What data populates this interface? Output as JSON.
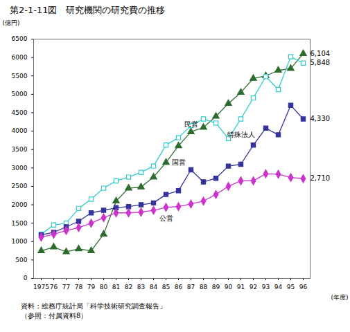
{
  "chart_data": {
    "type": "line",
    "title": "第2-1-11図　研究機関の研究費の推移",
    "source": "資料：総務庁統計局「科学技術研究調査報告」",
    "note": "（参照：付属資料8）",
    "x_label": "(年度)",
    "y_label": "(億円)",
    "categories": [
      "1975",
      "76",
      "77",
      "78",
      "79",
      "80",
      "81",
      "82",
      "83",
      "84",
      "85",
      "86",
      "87",
      "88",
      "89",
      "90",
      "91",
      "92",
      "93",
      "94",
      "95",
      "96"
    ],
    "ylim": [
      0,
      6500
    ],
    "yticks": [
      0,
      500,
      1000,
      1500,
      2000,
      2500,
      3000,
      3500,
      4000,
      4500,
      5000,
      5500,
      6000,
      6500
    ],
    "grid": false,
    "data_labels": true,
    "series": [
      {
        "name": "民営",
        "color": "#2e6b2e",
        "marker": "triangle",
        "values": [
          750,
          850,
          720,
          800,
          750,
          1200,
          2100,
          2450,
          2480,
          2750,
          3150,
          3600,
          3980,
          4100,
          4400,
          4750,
          5050,
          5430,
          5500,
          5650,
          5700,
          6104
        ],
        "value_labels": [
          null,
          null,
          null,
          null,
          null,
          null,
          null,
          null,
          null,
          null,
          null,
          null,
          null,
          null,
          null,
          null,
          null,
          null,
          null,
          null,
          null,
          "6,104"
        ]
      },
      {
        "name": "特殊法人",
        "color": "#33cccc",
        "marker": "open-square",
        "values": [
          1200,
          1450,
          1500,
          1900,
          2150,
          2450,
          2650,
          2750,
          2880,
          3050,
          3620,
          3820,
          4150,
          4330,
          4220,
          3800,
          4330,
          4900,
          5480,
          5130,
          6020,
          5848
        ],
        "value_labels": [
          null,
          null,
          null,
          null,
          null,
          null,
          null,
          null,
          null,
          null,
          null,
          null,
          null,
          null,
          null,
          null,
          null,
          null,
          null,
          null,
          null,
          "5,848"
        ]
      },
      {
        "name": "国営",
        "color": "#333399",
        "marker": "square",
        "values": [
          1180,
          1250,
          1400,
          1550,
          1780,
          1850,
          1920,
          1950,
          2000,
          2050,
          2280,
          2380,
          2950,
          2620,
          2720,
          3050,
          3100,
          3620,
          4080,
          3900,
          4700,
          4330
        ],
        "value_labels": [
          null,
          null,
          null,
          null,
          null,
          null,
          null,
          null,
          null,
          null,
          null,
          null,
          null,
          null,
          null,
          null,
          null,
          null,
          null,
          null,
          null,
          "4,330"
        ]
      },
      {
        "name": "公営",
        "color": "#cc33cc",
        "marker": "diamond",
        "values": [
          1120,
          1200,
          1300,
          1380,
          1500,
          1650,
          1780,
          1780,
          1800,
          1850,
          1930,
          1950,
          2020,
          2100,
          2280,
          2500,
          2650,
          2650,
          2840,
          2830,
          2740,
          2710
        ],
        "value_labels": [
          null,
          null,
          null,
          null,
          null,
          null,
          null,
          null,
          null,
          null,
          null,
          null,
          null,
          null,
          null,
          null,
          null,
          null,
          null,
          null,
          null,
          "2,710"
        ]
      }
    ],
    "annotations": [
      {
        "text": "民営",
        "x": "87",
        "y": 4180
      },
      {
        "text": "特殊法人",
        "x": "91",
        "y": 3900
      },
      {
        "text": "国営",
        "x": "86",
        "y": 3150
      },
      {
        "text": "公営",
        "x": "85",
        "y": 1620
      }
    ]
  }
}
